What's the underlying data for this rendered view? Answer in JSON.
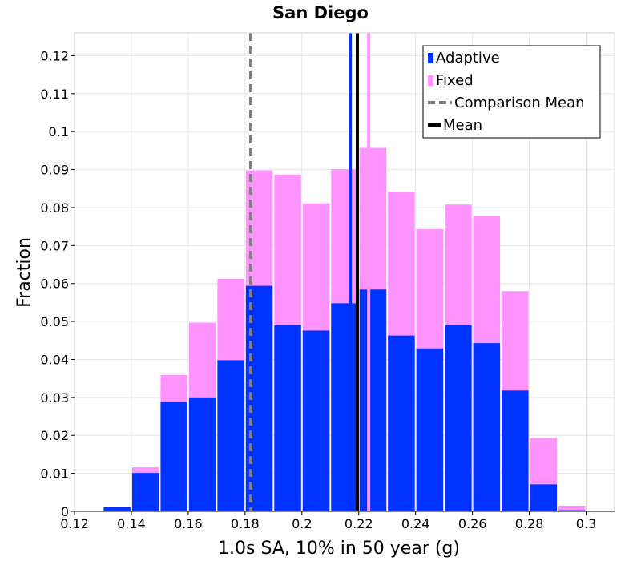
{
  "chart_data": {
    "type": "bar",
    "title": "San Diego",
    "xlabel": "1.0s SA, 10% in 50 year (g)",
    "ylabel": "Fraction",
    "xlim": [
      0.12,
      0.31
    ],
    "ylim": [
      0,
      0.126
    ],
    "bin_width": 0.01,
    "x_ticks": [
      "0.12",
      "0.14",
      "0.16",
      "0.18",
      "0.2",
      "0.22",
      "0.24",
      "0.26",
      "0.28",
      "0.3"
    ],
    "y_ticks": [
      "0",
      "0.01",
      "0.02",
      "0.03",
      "0.04",
      "0.05",
      "0.06",
      "0.07",
      "0.08",
      "0.09",
      "0.1",
      "0.11",
      "0.12"
    ],
    "bins": [
      0.13,
      0.14,
      0.15,
      0.16,
      0.17,
      0.18,
      0.19,
      0.2,
      0.21,
      0.22,
      0.23,
      0.24,
      0.25,
      0.26,
      0.27,
      0.28,
      0.29,
      0.3
    ],
    "series": [
      {
        "name": "Adaptive",
        "color": "#0033ff",
        "values": [
          0.0012,
          0.0101,
          0.0288,
          0.03,
          0.0398,
          0.0594,
          0.049,
          0.0476,
          0.0548,
          0.0584,
          0.0463,
          0.0429,
          0.049,
          0.0443,
          0.0318,
          0.0071,
          0.0003,
          0.0001
        ]
      },
      {
        "name": "Fixed",
        "color": "#ff94ff",
        "values": [
          0.0012,
          0.0116,
          0.0359,
          0.0497,
          0.0612,
          0.0898,
          0.0887,
          0.0811,
          0.0901,
          0.0957,
          0.0841,
          0.0743,
          0.0808,
          0.0778,
          0.058,
          0.0193,
          0.0015,
          0.0002
        ]
      }
    ],
    "reference_lines": [
      {
        "name": "Comparison Mean",
        "x": 0.182,
        "color": "#808080",
        "style": "dashed"
      },
      {
        "name": "Adaptive mean",
        "x": 0.217,
        "color": "#0033ff",
        "style": "solid"
      },
      {
        "name": "Fixed mean",
        "x": 0.2235,
        "color": "#ff94ff",
        "style": "solid"
      },
      {
        "name": "Mean",
        "x": 0.2195,
        "color": "#000000",
        "style": "solid"
      }
    ],
    "legend": {
      "placement": "top-right",
      "entries": [
        {
          "label": "Adaptive",
          "color": "#0033ff",
          "kind": "bar"
        },
        {
          "label": "Fixed",
          "color": "#ff94ff",
          "kind": "bar"
        },
        {
          "label": "Comparison Mean",
          "color": "#808080",
          "kind": "dashed-line"
        },
        {
          "label": "Mean",
          "color": "#000000",
          "kind": "line"
        }
      ]
    },
    "grid": true
  }
}
